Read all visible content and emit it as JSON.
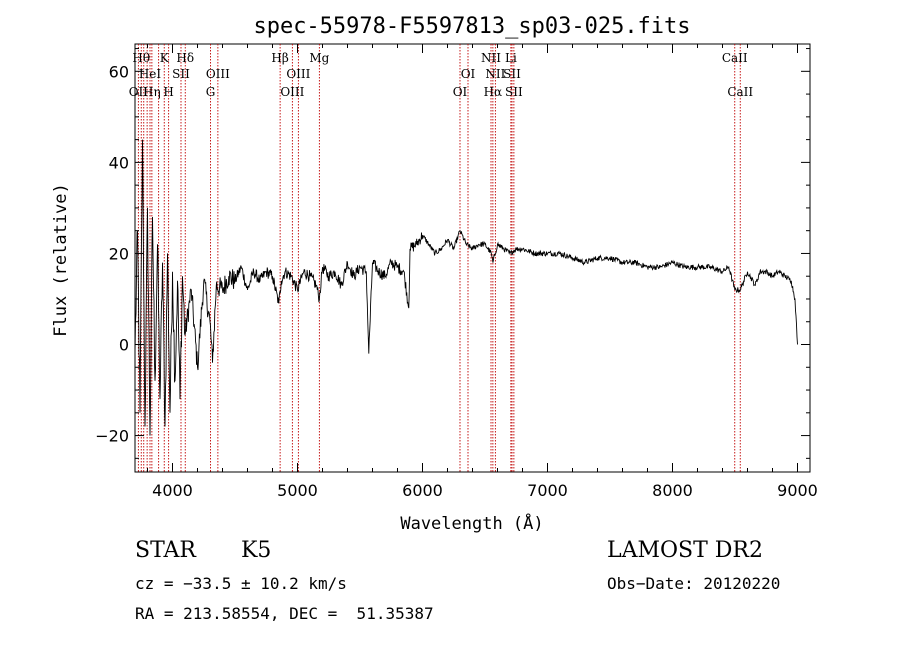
{
  "chart_data": {
    "type": "line",
    "title": "spec-55978-F5597813_sp03-025.fits",
    "xlabel": "Wavelength (Å)",
    "ylabel": "Flux (relative)",
    "xlim": [
      3700,
      9100
    ],
    "ylim": [
      -28,
      66
    ],
    "xticks": [
      {
        "value": 4000,
        "label": "4000"
      },
      {
        "value": 5000,
        "label": "5000"
      },
      {
        "value": 6000,
        "label": "6000"
      },
      {
        "value": 7000,
        "label": "7000"
      },
      {
        "value": 8000,
        "label": "8000"
      },
      {
        "value": 9000,
        "label": "9000"
      }
    ],
    "yticks": [
      {
        "value": -20,
        "label": "−20"
      },
      {
        "value": 0,
        "label": "0"
      },
      {
        "value": 20,
        "label": "20"
      },
      {
        "value": 40,
        "label": "40"
      },
      {
        "value": 60,
        "label": "60"
      }
    ],
    "spectrum": {
      "x": [
        3700,
        3720,
        3740,
        3760,
        3780,
        3800,
        3820,
        3840,
        3860,
        3880,
        3900,
        3920,
        3940,
        3960,
        3980,
        4000,
        4020,
        4040,
        4060,
        4080,
        4100,
        4150,
        4200,
        4250,
        4300,
        4320,
        4350,
        4400,
        4450,
        4500,
        4550,
        4600,
        4650,
        4700,
        4750,
        4800,
        4850,
        4870,
        4900,
        4950,
        5000,
        5050,
        5100,
        5150,
        5175,
        5200,
        5250,
        5300,
        5350,
        5400,
        5450,
        5500,
        5550,
        5570,
        5600,
        5650,
        5700,
        5750,
        5800,
        5850,
        5890,
        5900,
        5950,
        6000,
        6050,
        6100,
        6150,
        6200,
        6250,
        6300,
        6350,
        6400,
        6450,
        6500,
        6550,
        6563,
        6600,
        6650,
        6700,
        6750,
        6800,
        6900,
        7000,
        7100,
        7200,
        7300,
        7400,
        7500,
        7600,
        7700,
        7800,
        7900,
        8000,
        8100,
        8200,
        8300,
        8400,
        8450,
        8498,
        8542,
        8600,
        8662,
        8700,
        8750,
        8800,
        8850,
        8900,
        8950,
        8980,
        9000
      ],
      "y": [
        -2,
        25,
        -15,
        45,
        -18,
        30,
        -20,
        28,
        -8,
        22,
        -12,
        18,
        -18,
        20,
        -15,
        16,
        -8,
        14,
        -12,
        15,
        2,
        12,
        -5,
        14,
        5,
        -4,
        13,
        12,
        15,
        14,
        17,
        12,
        16,
        14,
        16,
        15,
        9,
        14,
        16,
        15,
        12,
        16,
        15,
        13,
        10,
        17,
        15,
        16,
        13,
        18,
        15,
        17,
        16,
        -2,
        18,
        16,
        15,
        18,
        17,
        16,
        8,
        21,
        22,
        24,
        22,
        20,
        21,
        23,
        21,
        25,
        22,
        21,
        22,
        22,
        20,
        18,
        22,
        21,
        20,
        21,
        21,
        20,
        20,
        20,
        19,
        18,
        19,
        19,
        18,
        18,
        17,
        17,
        18,
        17,
        17,
        17,
        16,
        17,
        12,
        12,
        16,
        13,
        16,
        16,
        15,
        16,
        15,
        14,
        10,
        0
      ]
    },
    "line_markers": [
      {
        "wavelength": 3727,
        "label": "OII",
        "row": 3
      },
      {
        "wavelength": 3750,
        "label": "Hθ",
        "row": 1
      },
      {
        "wavelength": 3770,
        "label": "",
        "row": 0
      },
      {
        "wavelength": 3797,
        "label": "",
        "row": 0
      },
      {
        "wavelength": 3820,
        "label": "HeI",
        "row": 2
      },
      {
        "wavelength": 3835,
        "label": "Hη",
        "row": 3
      },
      {
        "wavelength": 3889,
        "label": "",
        "row": 0
      },
      {
        "wavelength": 3934,
        "label": "K",
        "row": 1
      },
      {
        "wavelength": 3969,
        "label": "H",
        "row": 3
      },
      {
        "wavelength": 4068,
        "label": "SII",
        "row": 2
      },
      {
        "wavelength": 4102,
        "label": "Hδ",
        "row": 1
      },
      {
        "wavelength": 4304,
        "label": "G",
        "row": 3
      },
      {
        "wavelength": 4363,
        "label": "OIII",
        "row": 2
      },
      {
        "wavelength": 4861,
        "label": "Hβ",
        "row": 1
      },
      {
        "wavelength": 4959,
        "label": "OIII",
        "row": 3
      },
      {
        "wavelength": 5007,
        "label": "OIII",
        "row": 2
      },
      {
        "wavelength": 5175,
        "label": "Mg",
        "row": 1
      },
      {
        "wavelength": 6300,
        "label": "OI",
        "row": 3
      },
      {
        "wavelength": 6364,
        "label": "OI",
        "row": 2
      },
      {
        "wavelength": 6548,
        "label": "NII",
        "row": 1
      },
      {
        "wavelength": 6563,
        "label": "Hα",
        "row": 3
      },
      {
        "wavelength": 6583,
        "label": "NII",
        "row": 2
      },
      {
        "wavelength": 6707,
        "label": "Li",
        "row": 1
      },
      {
        "wavelength": 6716,
        "label": "SII",
        "row": 2
      },
      {
        "wavelength": 6731,
        "label": "SII",
        "row": 3
      },
      {
        "wavelength": 8498,
        "label": "CaII",
        "row": 1
      },
      {
        "wavelength": 8542,
        "label": "CaII",
        "row": 3
      }
    ]
  },
  "info": {
    "object_class": "STAR",
    "subclass": "K5",
    "survey": "LAMOST DR2",
    "redshift": "cz = −33.5 ± 10.2 km/s",
    "obs_date": "Obs−Date: 20120220",
    "coords": "RA = 213.58554, DEC =  51.35387"
  },
  "colors": {
    "spectrum": "#000000",
    "marker_line": "#c00000",
    "axes": "#000000"
  }
}
